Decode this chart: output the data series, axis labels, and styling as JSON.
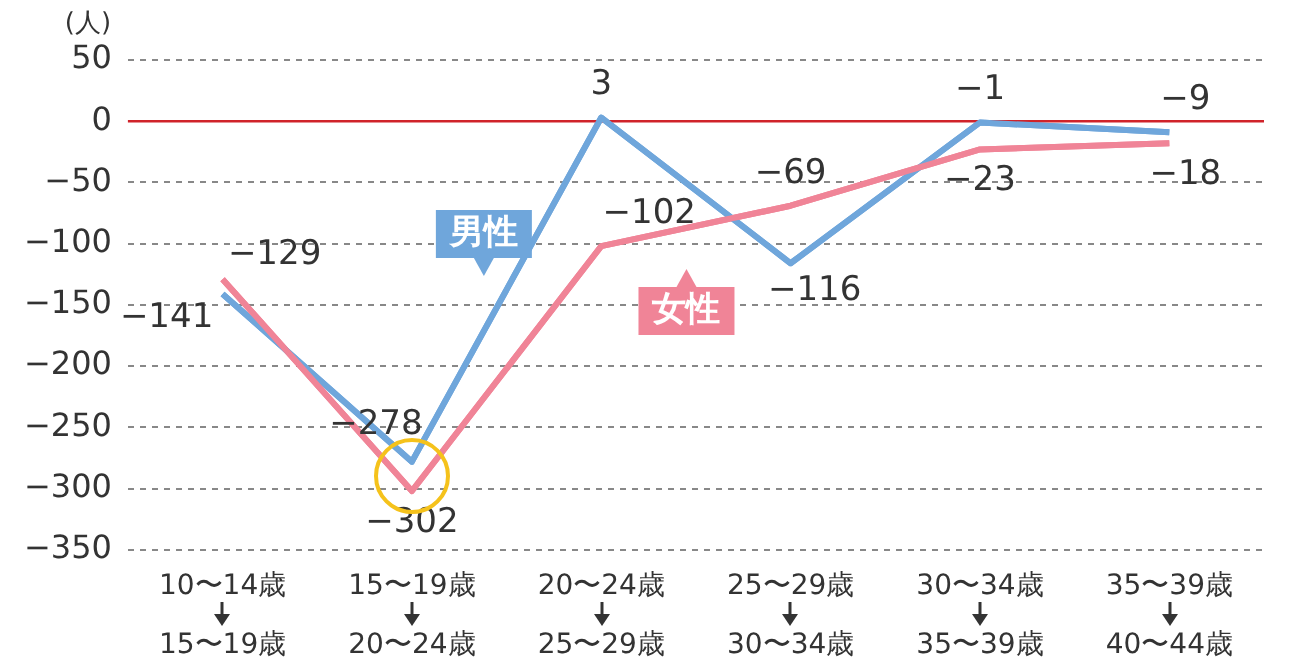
{
  "chart_data": {
    "type": "line",
    "ylabel": "(人)",
    "categories": [
      "10〜14歳\n15〜19歳",
      "15〜19歳\n20〜24歳",
      "20〜24歳\n25〜29歳",
      "25〜29歳\n30〜34歳",
      "30〜34歳\n35〜39歳",
      "35〜39歳\n40〜44歳"
    ],
    "series": [
      {
        "name": "男性",
        "color": "#6fa6db",
        "values": [
          -141,
          -278,
          3,
          -116,
          -1,
          -9
        ]
      },
      {
        "name": "女性",
        "color": "#f08497",
        "values": [
          -129,
          -302,
          -102,
          -69,
          -23,
          -18
        ]
      }
    ],
    "ylim": [
      -350,
      50
    ],
    "yticks": [
      -350,
      -300,
      -250,
      -200,
      -150,
      -100,
      -50,
      0,
      50
    ],
    "grid": "y",
    "marker": "none",
    "line_style": "solid",
    "data_labels": true,
    "ref_lines": [
      {
        "axis": "y",
        "value": 0,
        "color": "#d0232a"
      }
    ]
  }
}
